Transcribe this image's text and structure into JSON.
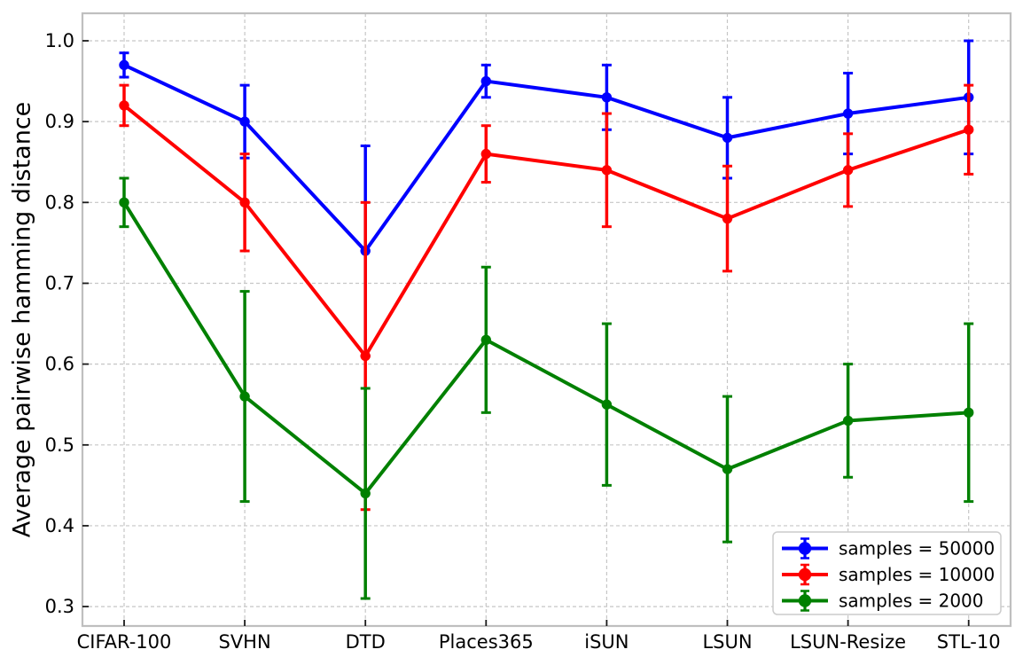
{
  "figure": {
    "background": "#ffffff",
    "text_color": "#000000",
    "grid_color": "#c6c6c6",
    "spine_color": "#bfbfbf",
    "tick_color": "#1a1a1a"
  },
  "chart_data": {
    "type": "line",
    "title": "",
    "xlabel": "",
    "ylabel": "Average pairwise hamming distance",
    "categories": [
      "CIFAR-100",
      "SVHN",
      "DTD",
      "Places365",
      "iSUN",
      "LSUN",
      "LSUN-Resize",
      "STL-10"
    ],
    "y_ticks": [
      0.3,
      0.4,
      0.5,
      0.6,
      0.7,
      0.8,
      0.9,
      1.0
    ],
    "ylim": [
      0.276,
      1.034
    ],
    "grid": true,
    "grid_style": "dashed",
    "error_bars": true,
    "legend": {
      "position": "lower right",
      "entries": [
        "samples = 50000",
        "samples = 10000",
        "samples = 2000"
      ]
    },
    "series": [
      {
        "name": "samples = 50000",
        "color": "#0000ff",
        "marker": "o",
        "values": [
          0.97,
          0.9,
          0.74,
          0.95,
          0.93,
          0.88,
          0.91,
          0.93
        ],
        "errors": [
          0.015,
          0.045,
          0.13,
          0.02,
          0.04,
          0.05,
          0.05,
          0.07
        ]
      },
      {
        "name": "samples = 10000",
        "color": "#ff0000",
        "marker": "o",
        "values": [
          0.92,
          0.8,
          0.61,
          0.86,
          0.84,
          0.78,
          0.84,
          0.89
        ],
        "errors": [
          0.025,
          0.06,
          0.19,
          0.035,
          0.07,
          0.065,
          0.045,
          0.055
        ]
      },
      {
        "name": "samples = 2000",
        "color": "#008000",
        "marker": "o",
        "values": [
          0.8,
          0.56,
          0.44,
          0.63,
          0.55,
          0.47,
          0.53,
          0.54
        ],
        "errors": [
          0.03,
          0.13,
          0.13,
          0.09,
          0.1,
          0.09,
          0.07,
          0.11
        ]
      }
    ]
  }
}
